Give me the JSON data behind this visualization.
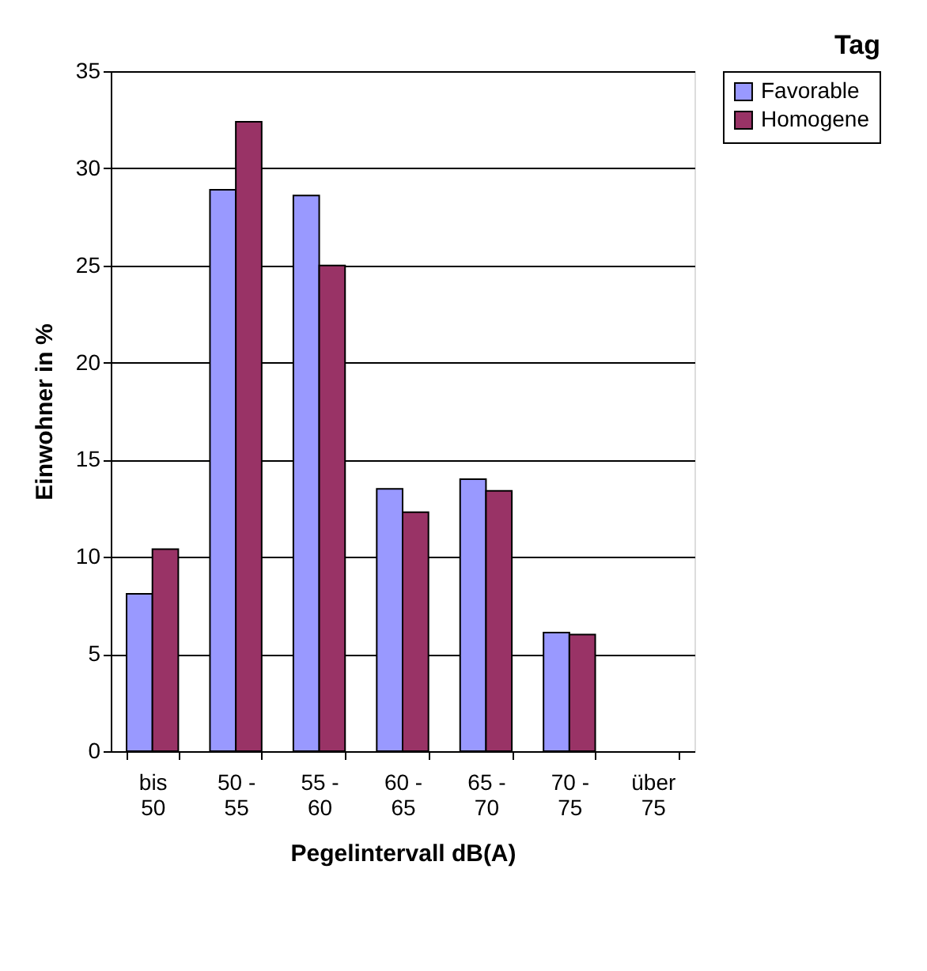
{
  "chart_data": {
    "type": "bar",
    "title": "Tag",
    "xlabel": "Pegelintervall dB(A)",
    "ylabel": "Einwohner in %",
    "categories": [
      "bis 50",
      "50 - 55",
      "55 - 60",
      "60 - 65",
      "65 - 70",
      "70 - 75",
      "über 75"
    ],
    "series": [
      {
        "name": "Favorable",
        "color": "#9999ff",
        "values": [
          8.1,
          28.9,
          28.6,
          13.5,
          14.0,
          6.1,
          null
        ]
      },
      {
        "name": "Homogene",
        "color": "#993366",
        "values": [
          10.4,
          32.4,
          25.0,
          12.3,
          13.4,
          6.0,
          null
        ]
      }
    ],
    "ylim": [
      0,
      35
    ],
    "yticks": [
      0,
      5,
      10,
      15,
      20,
      25,
      30,
      35
    ],
    "grid": "y",
    "legend": "right"
  }
}
